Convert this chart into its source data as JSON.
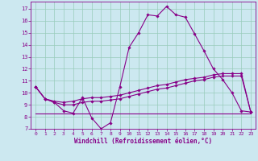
{
  "xlabel": "Windchill (Refroidissement éolien,°C)",
  "background_color": "#cce8f0",
  "line_color": "#880088",
  "grid_color": "#99ccbb",
  "xlim": [
    -0.5,
    23.5
  ],
  "ylim": [
    7,
    17.6
  ],
  "yticks": [
    7,
    8,
    9,
    10,
    11,
    12,
    13,
    14,
    15,
    16,
    17
  ],
  "xticks": [
    0,
    1,
    2,
    3,
    4,
    5,
    6,
    7,
    8,
    9,
    10,
    11,
    12,
    13,
    14,
    15,
    16,
    17,
    18,
    19,
    20,
    21,
    22,
    23
  ],
  "series": [
    {
      "x": [
        0,
        1,
        2,
        3,
        4,
        5,
        6,
        7,
        8,
        9,
        10,
        11,
        12,
        13,
        14,
        15,
        16,
        17,
        18,
        19,
        20,
        21,
        22,
        23
      ],
      "y": [
        10.5,
        9.5,
        9.2,
        8.5,
        8.3,
        9.6,
        7.9,
        7.0,
        7.5,
        10.5,
        13.8,
        15.0,
        16.5,
        16.4,
        17.2,
        16.5,
        16.3,
        14.9,
        13.5,
        12.0,
        11.1,
        10.0,
        8.5,
        8.4
      ],
      "has_markers": true
    },
    {
      "x": [
        0,
        1,
        2,
        3,
        4,
        5,
        6,
        7,
        8,
        9,
        10,
        11,
        12,
        13,
        14,
        15,
        16,
        17,
        18,
        19,
        20,
        21,
        22,
        23
      ],
      "y": [
        10.5,
        9.5,
        9.3,
        9.2,
        9.3,
        9.5,
        9.6,
        9.6,
        9.7,
        9.8,
        10.0,
        10.2,
        10.4,
        10.6,
        10.7,
        10.9,
        11.1,
        11.2,
        11.3,
        11.5,
        11.6,
        11.6,
        11.6,
        8.4
      ],
      "has_markers": true
    },
    {
      "x": [
        0,
        1,
        2,
        3,
        4,
        5,
        6,
        7,
        8,
        9,
        10,
        11,
        12,
        13,
        14,
        15,
        16,
        17,
        18,
        19,
        20,
        21,
        22,
        23
      ],
      "y": [
        10.5,
        9.5,
        9.2,
        9.0,
        9.0,
        9.2,
        9.3,
        9.3,
        9.4,
        9.5,
        9.7,
        9.9,
        10.1,
        10.3,
        10.4,
        10.6,
        10.8,
        11.0,
        11.1,
        11.3,
        11.4,
        11.4,
        11.4,
        8.4
      ],
      "has_markers": true
    },
    {
      "x": [
        0,
        23
      ],
      "y": [
        8.3,
        8.3
      ],
      "has_markers": false
    }
  ]
}
